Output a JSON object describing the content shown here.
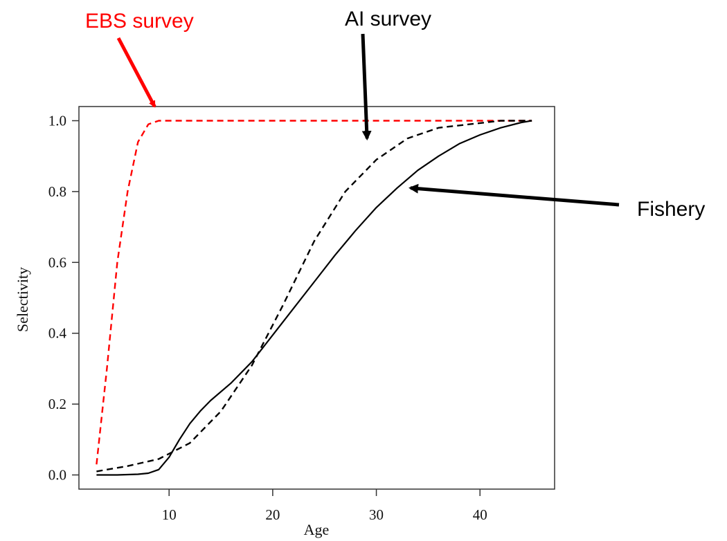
{
  "chart_data": {
    "type": "line",
    "xlabel": "Age",
    "ylabel": "Selectivity",
    "xlim": [
      1.3,
      47.2
    ],
    "ylim": [
      -0.04,
      1.04
    ],
    "x_ticks": [
      10,
      20,
      30,
      40
    ],
    "y_ticks": [
      0.0,
      0.2,
      0.4,
      0.6,
      0.8,
      1.0
    ],
    "y_tick_labels": [
      "0.0",
      "0.2",
      "0.4",
      "0.6",
      "0.8",
      "1.0"
    ],
    "grid": false,
    "series": [
      {
        "name": "EBS survey",
        "color": "#ff0000",
        "style": "dashed",
        "x": [
          3,
          4,
          5,
          6,
          7,
          8,
          9,
          10,
          15,
          20,
          25,
          30,
          35,
          40,
          45
        ],
        "y": [
          0.03,
          0.3,
          0.6,
          0.8,
          0.94,
          0.99,
          1.0,
          1.0,
          1.0,
          1.0,
          1.0,
          1.0,
          1.0,
          1.0,
          1.0
        ]
      },
      {
        "name": "AI survey",
        "color": "#000000",
        "style": "dashed",
        "x": [
          3,
          6,
          9,
          12,
          15,
          18,
          21,
          24,
          27,
          30,
          33,
          36,
          39,
          42,
          45
        ],
        "y": [
          0.01,
          0.025,
          0.045,
          0.09,
          0.18,
          0.31,
          0.48,
          0.66,
          0.8,
          0.89,
          0.95,
          0.98,
          0.99,
          1.0,
          1.0
        ]
      },
      {
        "name": "Fishery",
        "color": "#000000",
        "style": "solid",
        "x": [
          3,
          5,
          7,
          8,
          9,
          10,
          11,
          12,
          13,
          14,
          16,
          18,
          20,
          22,
          24,
          26,
          28,
          30,
          32,
          34,
          36,
          38,
          40,
          42,
          44,
          45
        ],
        "y": [
          0.0,
          0.0,
          0.002,
          0.005,
          0.015,
          0.05,
          0.1,
          0.145,
          0.18,
          0.21,
          0.26,
          0.32,
          0.395,
          0.47,
          0.545,
          0.62,
          0.69,
          0.755,
          0.81,
          0.86,
          0.9,
          0.935,
          0.96,
          0.98,
          0.995,
          1.0
        ]
      }
    ],
    "annotations": [
      {
        "text": "EBS survey",
        "color": "#ff0000",
        "arrow_to": {
          "x": 8.6,
          "y": 1.04
        }
      },
      {
        "text": "AI survey",
        "color": "#000000",
        "arrow_to": {
          "x": 29.1,
          "y": 0.95
        }
      },
      {
        "text": "Fishery",
        "color": "#000000",
        "arrow_to": {
          "x": 33.3,
          "y": 0.81
        }
      }
    ]
  }
}
